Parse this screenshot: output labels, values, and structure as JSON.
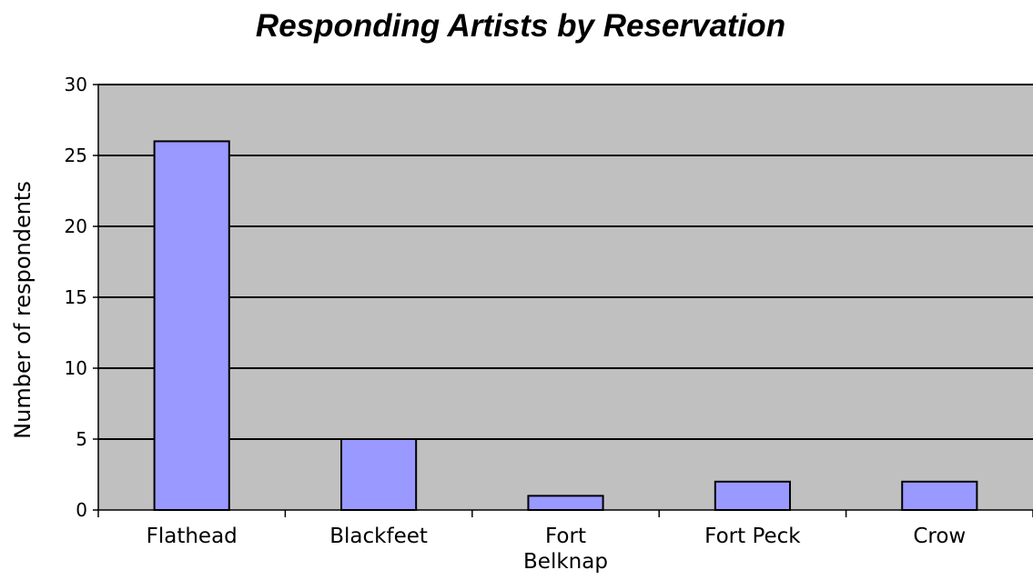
{
  "chart_data": {
    "type": "bar",
    "title": "Responding Artists by Reservation",
    "xlabel": "",
    "ylabel": "Number of respondents",
    "categories": [
      "Flathead",
      "Blackfeet",
      "Fort Belknap",
      "Fort Peck",
      "Crow"
    ],
    "category_label_lines": [
      [
        "Flathead"
      ],
      [
        "Blackfeet"
      ],
      [
        "Fort",
        "Belknap"
      ],
      [
        "Fort Peck"
      ],
      [
        "Crow"
      ]
    ],
    "values": [
      26,
      5,
      1,
      2,
      2
    ],
    "ylim": [
      0,
      30
    ],
    "yticks": [
      0,
      5,
      10,
      15,
      20,
      25,
      30
    ],
    "grid": true,
    "legend": "none",
    "colors": {
      "bar_fill": "#9999ff",
      "bar_stroke": "#000000",
      "plot_background": "#c0c0c0",
      "gridline": "#000000"
    }
  }
}
